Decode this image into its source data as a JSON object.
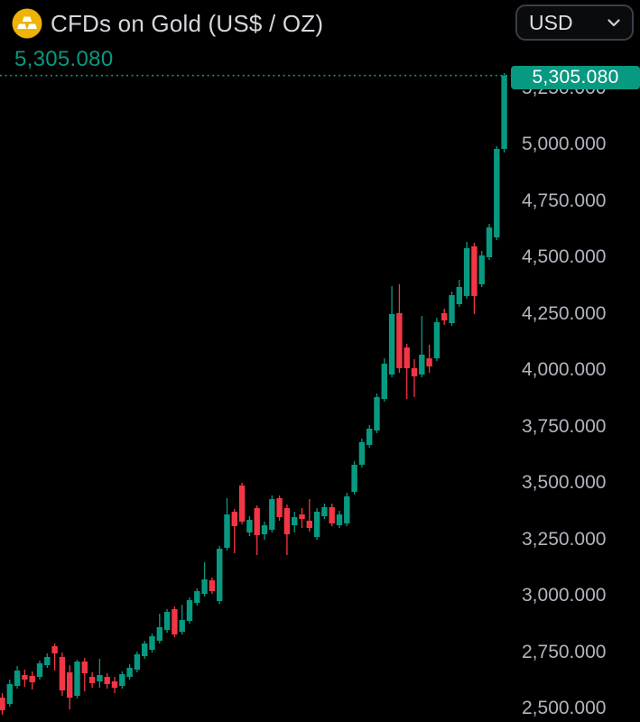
{
  "header": {
    "title": "CFDs on Gold (US$ / OZ)",
    "symbol_icon": "gold-bars-icon",
    "currency_selector": {
      "value": "USD",
      "chevron_icon": "chevron-down-icon"
    }
  },
  "price_display": {
    "current_price": "5,305.080",
    "price_badge": "5,305.080"
  },
  "colors": {
    "background": "#000000",
    "candle_up": "#089981",
    "candle_down": "#f23645",
    "accent_teal": "#089981",
    "axis_text": "#b2b5be",
    "title_text": "#d5d7db",
    "gold_icon": "#edb306",
    "badge_text": "#ffffff"
  },
  "y_axis": {
    "labels": [
      {
        "label": "5,250.000",
        "price": 5250
      },
      {
        "label": "5,000.000",
        "price": 5000
      },
      {
        "label": "4,750.000",
        "price": 4750
      },
      {
        "label": "4,500.000",
        "price": 4500
      },
      {
        "label": "4,250.000",
        "price": 4250
      },
      {
        "label": "4,000.000",
        "price": 4000
      },
      {
        "label": "3,750.000",
        "price": 3750
      },
      {
        "label": "3,500.000",
        "price": 3500
      },
      {
        "label": "3,250.000",
        "price": 3250
      },
      {
        "label": "3,000.000",
        "price": 3000
      },
      {
        "label": "2,750.000",
        "price": 2750
      },
      {
        "label": "2,500.000",
        "price": 2500
      }
    ]
  },
  "chart_data": {
    "type": "candlestick",
    "title": "CFDs on Gold (US$ / OZ)",
    "currency": "USD",
    "last_price": 5305.08,
    "last_price_label": "5,305.080",
    "grid": false,
    "x_axis_labels": [],
    "y_axis_ticks": [
      "5,250.000",
      "5,000.000",
      "4,750.000",
      "4,500.000",
      "4,250.000",
      "4,000.000",
      "3,750.000",
      "3,500.000",
      "3,250.000",
      "3,000.000",
      "2,750.000",
      "2,500.000"
    ],
    "ylim_visible": [
      2440,
      5400
    ],
    "candles_ohlc": [
      [
        2548,
        2568,
        2472,
        2492
      ],
      [
        2520,
        2628,
        2508,
        2608
      ],
      [
        2600,
        2688,
        2588,
        2668
      ],
      [
        2648,
        2672,
        2596,
        2628
      ],
      [
        2644,
        2664,
        2584,
        2616
      ],
      [
        2640,
        2712,
        2628,
        2700
      ],
      [
        2692,
        2744,
        2680,
        2728
      ],
      [
        2776,
        2788,
        2668,
        2744
      ],
      [
        2728,
        2748,
        2556,
        2580
      ],
      [
        2660,
        2692,
        2496,
        2548
      ],
      [
        2556,
        2716,
        2544,
        2708
      ],
      [
        2708,
        2724,
        2576,
        2656
      ],
      [
        2640,
        2660,
        2592,
        2612
      ],
      [
        2620,
        2720,
        2592,
        2648
      ],
      [
        2640,
        2656,
        2588,
        2608
      ],
      [
        2620,
        2640,
        2568,
        2592
      ],
      [
        2600,
        2664,
        2588,
        2652
      ],
      [
        2640,
        2696,
        2628,
        2680
      ],
      [
        2672,
        2752,
        2660,
        2740
      ],
      [
        2732,
        2800,
        2720,
        2788
      ],
      [
        2760,
        2832,
        2748,
        2820
      ],
      [
        2800,
        2920,
        2788,
        2860
      ],
      [
        2848,
        2940,
        2836,
        2928
      ],
      [
        2940,
        2952,
        2816,
        2828
      ],
      [
        2840,
        2960,
        2828,
        2892
      ],
      [
        2888,
        2992,
        2876,
        2980
      ],
      [
        2968,
        3032,
        2956,
        3020
      ],
      [
        3008,
        3148,
        2996,
        3072
      ],
      [
        3068,
        3080,
        3008,
        3020
      ],
      [
        2976,
        3220,
        2964,
        3208
      ],
      [
        3212,
        3432,
        3200,
        3360
      ],
      [
        3372,
        3384,
        3188,
        3308
      ],
      [
        3488,
        3500,
        3316,
        3328
      ],
      [
        3280,
        3352,
        3264,
        3336
      ],
      [
        3388,
        3400,
        3180,
        3268
      ],
      [
        3272,
        3328,
        3248,
        3312
      ],
      [
        3292,
        3444,
        3280,
        3428
      ],
      [
        3432,
        3444,
        3332,
        3348
      ],
      [
        3388,
        3404,
        3180,
        3272
      ],
      [
        3312,
        3372,
        3280,
        3348
      ],
      [
        3360,
        3388,
        3300,
        3340
      ],
      [
        3332,
        3428,
        3284,
        3300
      ],
      [
        3260,
        3388,
        3248,
        3372
      ],
      [
        3352,
        3408,
        3340,
        3392
      ],
      [
        3392,
        3408,
        3308,
        3320
      ],
      [
        3312,
        3376,
        3300,
        3360
      ],
      [
        3320,
        3456,
        3308,
        3440
      ],
      [
        3460,
        3596,
        3448,
        3580
      ],
      [
        3580,
        3696,
        3568,
        3680
      ],
      [
        3668,
        3756,
        3656,
        3740
      ],
      [
        3732,
        3896,
        3720,
        3880
      ],
      [
        3872,
        4052,
        3860,
        4028
      ],
      [
        3980,
        4372,
        3968,
        4248
      ],
      [
        4252,
        4380,
        3988,
        4008
      ],
      [
        4100,
        4116,
        3872,
        4008
      ],
      [
        4008,
        4048,
        3880,
        3972
      ],
      [
        3980,
        4240,
        3968,
        4068
      ],
      [
        4052,
        4112,
        3988,
        4016
      ],
      [
        4052,
        4232,
        4040,
        4212
      ],
      [
        4252,
        4272,
        4200,
        4220
      ],
      [
        4208,
        4348,
        4196,
        4332
      ],
      [
        4292,
        4400,
        4280,
        4368
      ],
      [
        4328,
        4568,
        4316,
        4540
      ],
      [
        4548,
        4564,
        4248,
        4328
      ],
      [
        4380,
        4528,
        4368,
        4508
      ],
      [
        4500,
        4648,
        4488,
        4632
      ],
      [
        4588,
        4992,
        4576,
        4980
      ],
      [
        4980,
        5316,
        4964,
        5305.08
      ]
    ]
  }
}
